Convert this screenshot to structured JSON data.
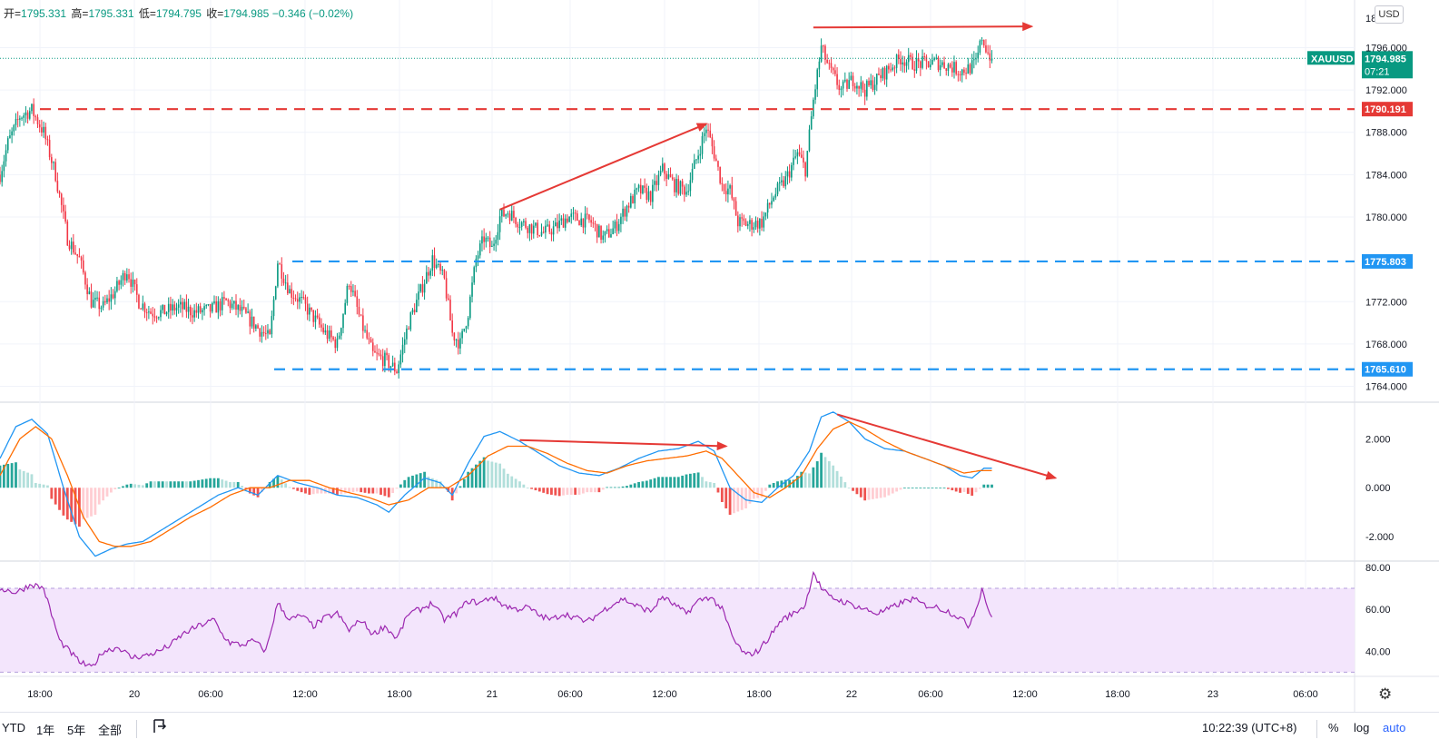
{
  "header": {
    "open_label": "开=",
    "open": "1795.331",
    "high_label": "高=",
    "high": "1795.331",
    "low_label": "低=",
    "low": "1794.795",
    "close_label": "收=",
    "close": "1794.985",
    "change": "−0.346 (−0.02%)",
    "currency_button": "USD"
  },
  "price_badge": {
    "symbol": "XAUUSD",
    "price": "1794.985",
    "countdown": "07:21"
  },
  "chart_data": [
    {
      "type": "candlestick",
      "title": "XAUUSD",
      "y_ticks": [
        "1796.000",
        "1792.000",
        "1788.000",
        "1784.000",
        "1780.000",
        "1772.000",
        "1768.000",
        "1764.000"
      ],
      "top_tick_partial": "18…00",
      "ylim": [
        1762.5,
        1800.5
      ],
      "x_tick_labels": [
        "18:00",
        "20",
        "06:00",
        "12:00",
        "18:00",
        "21",
        "06:00",
        "12:00",
        "18:00",
        "22",
        "06:00",
        "12:00",
        "18:00",
        "23",
        "06:00"
      ],
      "last_price": 1794.985,
      "waypoints": [
        [
          0,
          1784
        ],
        [
          4,
          1787
        ],
        [
          10,
          1789.5
        ],
        [
          16,
          1790.1
        ],
        [
          22,
          1788
        ],
        [
          28,
          1784
        ],
        [
          34,
          1778
        ],
        [
          40,
          1776
        ],
        [
          46,
          1772
        ],
        [
          52,
          1771.5
        ],
        [
          58,
          1773
        ],
        [
          64,
          1775
        ],
        [
          70,
          1772
        ],
        [
          76,
          1771
        ],
        [
          82,
          1771
        ],
        [
          90,
          1771.5
        ],
        [
          98,
          1771
        ],
        [
          106,
          1771.2
        ],
        [
          114,
          1772
        ],
        [
          122,
          1771
        ],
        [
          130,
          1769.5
        ],
        [
          136,
          1768.5
        ],
        [
          140,
          1775.8
        ],
        [
          146,
          1773
        ],
        [
          152,
          1772
        ],
        [
          158,
          1770.5
        ],
        [
          164,
          1769
        ],
        [
          170,
          1768
        ],
        [
          176,
          1774
        ],
        [
          182,
          1770
        ],
        [
          188,
          1767
        ],
        [
          194,
          1766.5
        ],
        [
          200,
          1765.5
        ],
        [
          206,
          1770
        ],
        [
          212,
          1773
        ],
        [
          218,
          1776
        ],
        [
          224,
          1774
        ],
        [
          228,
          1769
        ],
        [
          232,
          1768
        ],
        [
          236,
          1771
        ],
        [
          240,
          1776
        ],
        [
          244,
          1778
        ],
        [
          248,
          1777
        ],
        [
          252,
          1780
        ],
        [
          256,
          1780.5
        ],
        [
          262,
          1779.5
        ],
        [
          268,
          1779
        ],
        [
          274,
          1778.5
        ],
        [
          280,
          1779
        ],
        [
          286,
          1780
        ],
        [
          292,
          1779.8
        ],
        [
          298,
          1779.5
        ],
        [
          304,
          1778
        ],
        [
          310,
          1779
        ],
        [
          316,
          1781
        ],
        [
          322,
          1782.5
        ],
        [
          328,
          1782
        ],
        [
          334,
          1784.5
        ],
        [
          340,
          1783
        ],
        [
          346,
          1782.5
        ],
        [
          352,
          1786
        ],
        [
          356,
          1788.5
        ],
        [
          360,
          1786
        ],
        [
          364,
          1783
        ],
        [
          368,
          1782.5
        ],
        [
          372,
          1779.5
        ],
        [
          378,
          1779.3
        ],
        [
          384,
          1779.5
        ],
        [
          390,
          1782
        ],
        [
          396,
          1783.5
        ],
        [
          402,
          1786
        ],
        [
          406,
          1784.5
        ],
        [
          410,
          1791
        ],
        [
          414,
          1796
        ],
        [
          418,
          1794
        ],
        [
          424,
          1792
        ],
        [
          430,
          1793
        ],
        [
          436,
          1792
        ],
        [
          442,
          1793
        ],
        [
          448,
          1794
        ],
        [
          454,
          1795
        ],
        [
          460,
          1794.5
        ],
        [
          466,
          1794.5
        ],
        [
          472,
          1794.6
        ],
        [
          478,
          1794.3
        ],
        [
          484,
          1793.8
        ],
        [
          488,
          1794
        ],
        [
          492,
          1794.5
        ],
        [
          495,
          1797
        ],
        [
          498,
          1795.5
        ],
        [
          500,
          1794.985
        ]
      ],
      "levels": [
        {
          "value": 1790.191,
          "label": "1790.191",
          "color": "#e53935",
          "style": "dashed"
        },
        {
          "value": 1775.803,
          "label": "1775.803",
          "color": "#2196f3",
          "style": "dashed"
        },
        {
          "value": 1765.61,
          "label": "1765.610",
          "color": "#2196f3",
          "style": "dashed"
        }
      ],
      "trendlines": [
        {
          "from": [
            252,
            1780.7
          ],
          "to": [
            356,
            1788.8
          ],
          "color": "#e53935",
          "arrow": true
        },
        {
          "from": [
            410,
            1797.9
          ],
          "to": [
            520,
            1798
          ],
          "color": "#e53935",
          "arrow": true
        }
      ]
    },
    {
      "type": "macd",
      "y_ticks": [
        "2.000",
        "0.000",
        "-2.000"
      ],
      "ylim": [
        -3.0,
        3.5
      ],
      "macd_waypoints": [
        [
          0,
          1.2
        ],
        [
          8,
          2.5
        ],
        [
          16,
          2.8
        ],
        [
          24,
          2.2
        ],
        [
          32,
          0
        ],
        [
          40,
          -2
        ],
        [
          48,
          -2.8
        ],
        [
          56,
          -2.5
        ],
        [
          64,
          -2.3
        ],
        [
          72,
          -2.2
        ],
        [
          80,
          -1.8
        ],
        [
          90,
          -1.3
        ],
        [
          100,
          -0.8
        ],
        [
          110,
          -0.3
        ],
        [
          120,
          0
        ],
        [
          130,
          -0.3
        ],
        [
          140,
          0.5
        ],
        [
          150,
          0.2
        ],
        [
          160,
          0
        ],
        [
          170,
          -0.3
        ],
        [
          180,
          -0.4
        ],
        [
          190,
          -0.7
        ],
        [
          196,
          -1.0
        ],
        [
          204,
          -0.3
        ],
        [
          214,
          0.4
        ],
        [
          222,
          0.2
        ],
        [
          228,
          -0.3
        ],
        [
          236,
          1.0
        ],
        [
          244,
          2.1
        ],
        [
          252,
          2.3
        ],
        [
          262,
          1.9
        ],
        [
          272,
          1.4
        ],
        [
          282,
          0.9
        ],
        [
          292,
          0.6
        ],
        [
          302,
          0.5
        ],
        [
          312,
          0.8
        ],
        [
          322,
          1.2
        ],
        [
          332,
          1.5
        ],
        [
          342,
          1.6
        ],
        [
          352,
          1.9
        ],
        [
          360,
          1.5
        ],
        [
          368,
          0
        ],
        [
          376,
          -0.5
        ],
        [
          384,
          -0.6
        ],
        [
          392,
          0
        ],
        [
          400,
          0.5
        ],
        [
          408,
          1.5
        ],
        [
          414,
          2.9
        ],
        [
          420,
          3.1
        ],
        [
          428,
          2.7
        ],
        [
          436,
          2.0
        ],
        [
          446,
          1.6
        ],
        [
          456,
          1.5
        ],
        [
          466,
          1.2
        ],
        [
          476,
          0.9
        ],
        [
          484,
          0.5
        ],
        [
          490,
          0.4
        ],
        [
          496,
          0.8
        ],
        [
          500,
          0.8
        ]
      ],
      "signal_waypoints": [
        [
          0,
          0.5
        ],
        [
          10,
          2.0
        ],
        [
          18,
          2.5
        ],
        [
          26,
          2.0
        ],
        [
          34,
          0.5
        ],
        [
          42,
          -1.2
        ],
        [
          50,
          -2.2
        ],
        [
          58,
          -2.4
        ],
        [
          66,
          -2.4
        ],
        [
          76,
          -2.2
        ],
        [
          86,
          -1.7
        ],
        [
          96,
          -1.2
        ],
        [
          106,
          -0.8
        ],
        [
          116,
          -0.3
        ],
        [
          126,
          0
        ],
        [
          136,
          0
        ],
        [
          146,
          0.3
        ],
        [
          156,
          0.3
        ],
        [
          166,
          0
        ],
        [
          176,
          -0.2
        ],
        [
          186,
          -0.4
        ],
        [
          196,
          -0.7
        ],
        [
          206,
          -0.5
        ],
        [
          216,
          0
        ],
        [
          226,
          0
        ],
        [
          236,
          0.5
        ],
        [
          246,
          1.3
        ],
        [
          256,
          1.7
        ],
        [
          266,
          1.7
        ],
        [
          276,
          1.4
        ],
        [
          286,
          1.0
        ],
        [
          296,
          0.7
        ],
        [
          306,
          0.6
        ],
        [
          316,
          0.9
        ],
        [
          326,
          1.1
        ],
        [
          336,
          1.2
        ],
        [
          346,
          1.3
        ],
        [
          356,
          1.5
        ],
        [
          364,
          1.2
        ],
        [
          372,
          0.5
        ],
        [
          380,
          -0.2
        ],
        [
          388,
          -0.4
        ],
        [
          396,
          0
        ],
        [
          404,
          0.5
        ],
        [
          412,
          1.6
        ],
        [
          420,
          2.4
        ],
        [
          428,
          2.7
        ],
        [
          436,
          2.4
        ],
        [
          446,
          1.9
        ],
        [
          456,
          1.5
        ],
        [
          466,
          1.2
        ],
        [
          476,
          0.9
        ],
        [
          486,
          0.6
        ],
        [
          494,
          0.7
        ],
        [
          500,
          0.7
        ]
      ],
      "macd_color": "#2196f3",
      "signal_color": "#ff6d00",
      "trendlines": [
        {
          "from": [
            262,
            1.95
          ],
          "to": [
            366,
            1.7
          ],
          "color": "#e53935",
          "arrow": true
        },
        {
          "from": [
            422,
            3.0
          ],
          "to": [
            532,
            0.4
          ],
          "color": "#e53935",
          "arrow": true
        }
      ]
    },
    {
      "type": "rsi",
      "y_ticks": [
        "80.00",
        "60.00",
        "40.00"
      ],
      "ylim": [
        28,
        83
      ],
      "band": [
        30,
        70
      ],
      "band_color": "#f3e5fc",
      "line_color": "#9c27b0",
      "waypoints": [
        [
          0,
          70
        ],
        [
          8,
          68
        ],
        [
          16,
          72
        ],
        [
          22,
          70
        ],
        [
          30,
          45
        ],
        [
          40,
          35
        ],
        [
          46,
          32
        ],
        [
          52,
          40
        ],
        [
          60,
          42
        ],
        [
          66,
          37
        ],
        [
          74,
          38
        ],
        [
          80,
          40
        ],
        [
          86,
          43
        ],
        [
          92,
          48
        ],
        [
          100,
          52
        ],
        [
          108,
          55
        ],
        [
          112,
          48
        ],
        [
          116,
          44
        ],
        [
          122,
          43
        ],
        [
          128,
          45
        ],
        [
          134,
          40
        ],
        [
          140,
          63
        ],
        [
          146,
          55
        ],
        [
          152,
          57
        ],
        [
          158,
          52
        ],
        [
          164,
          56
        ],
        [
          170,
          58
        ],
        [
          176,
          50
        ],
        [
          182,
          55
        ],
        [
          188,
          48
        ],
        [
          194,
          52
        ],
        [
          200,
          46
        ],
        [
          206,
          58
        ],
        [
          212,
          60
        ],
        [
          218,
          63
        ],
        [
          224,
          55
        ],
        [
          230,
          58
        ],
        [
          236,
          64
        ],
        [
          242,
          63
        ],
        [
          248,
          66
        ],
        [
          254,
          62
        ],
        [
          260,
          60
        ],
        [
          266,
          61
        ],
        [
          272,
          57
        ],
        [
          278,
          55
        ],
        [
          284,
          58
        ],
        [
          290,
          56
        ],
        [
          296,
          54
        ],
        [
          302,
          58
        ],
        [
          308,
          62
        ],
        [
          314,
          65
        ],
        [
          320,
          62
        ],
        [
          328,
          59
        ],
        [
          334,
          66
        ],
        [
          340,
          62
        ],
        [
          346,
          58
        ],
        [
          352,
          64
        ],
        [
          358,
          66
        ],
        [
          364,
          60
        ],
        [
          370,
          45
        ],
        [
          376,
          38
        ],
        [
          382,
          40
        ],
        [
          388,
          47
        ],
        [
          394,
          55
        ],
        [
          400,
          58
        ],
        [
          406,
          62
        ],
        [
          410,
          78
        ],
        [
          414,
          70
        ],
        [
          418,
          66
        ],
        [
          424,
          64
        ],
        [
          430,
          62
        ],
        [
          436,
          60
        ],
        [
          442,
          58
        ],
        [
          448,
          60
        ],
        [
          454,
          63
        ],
        [
          460,
          65
        ],
        [
          466,
          62
        ],
        [
          472,
          61
        ],
        [
          478,
          59
        ],
        [
          484,
          56
        ],
        [
          488,
          52
        ],
        [
          492,
          60
        ],
        [
          495,
          70
        ],
        [
          500,
          55
        ]
      ]
    }
  ],
  "bottom_bar": {
    "ranges": [
      "YTD",
      "1年",
      "5年",
      "全部"
    ],
    "goto_icon": "goto-date-icon",
    "clock": "10:22:39 (UTC+8)",
    "percent": "%",
    "log": "log",
    "auto": "auto"
  },
  "colors": {
    "up": "#089981",
    "down": "#f23645",
    "accent_blue": "#2196f3",
    "accent_red": "#e53935"
  }
}
